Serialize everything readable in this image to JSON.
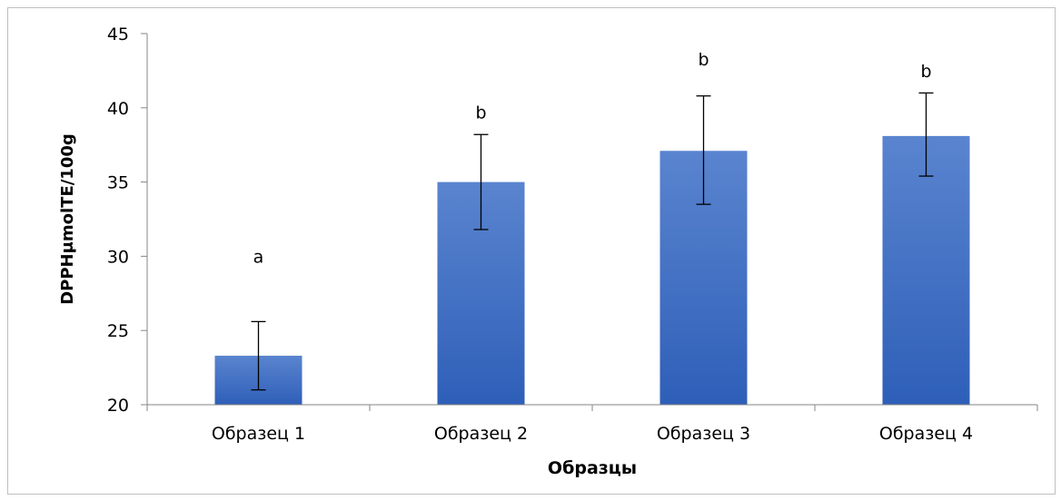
{
  "chart_data": {
    "type": "bar",
    "title": "",
    "xlabel": "Образцы",
    "ylabel": "DPPHμmolTE/100g",
    "ylim": [
      20,
      45
    ],
    "yticks": [
      "20",
      "25",
      "30",
      "35",
      "40",
      "45"
    ],
    "categories": [
      "Образец 1",
      "Образец 2",
      "Образец 3",
      "Образец 4"
    ],
    "values": [
      23.3,
      35.0,
      37.1,
      38.1
    ],
    "error_low": [
      21.0,
      31.8,
      33.5,
      35.4
    ],
    "error_high": [
      25.6,
      38.2,
      40.8,
      41.0
    ],
    "significance_labels": [
      "a",
      "b",
      "b",
      "b"
    ],
    "significance_label_values": [
      30,
      39.7,
      43.3,
      42.5
    ],
    "grid": false,
    "legend": "none",
    "bar_color_top": "#5a84cf",
    "bar_color_bottom": "#2e5fb8",
    "axis_color": "#868686",
    "error_bar_color": "#000000"
  }
}
